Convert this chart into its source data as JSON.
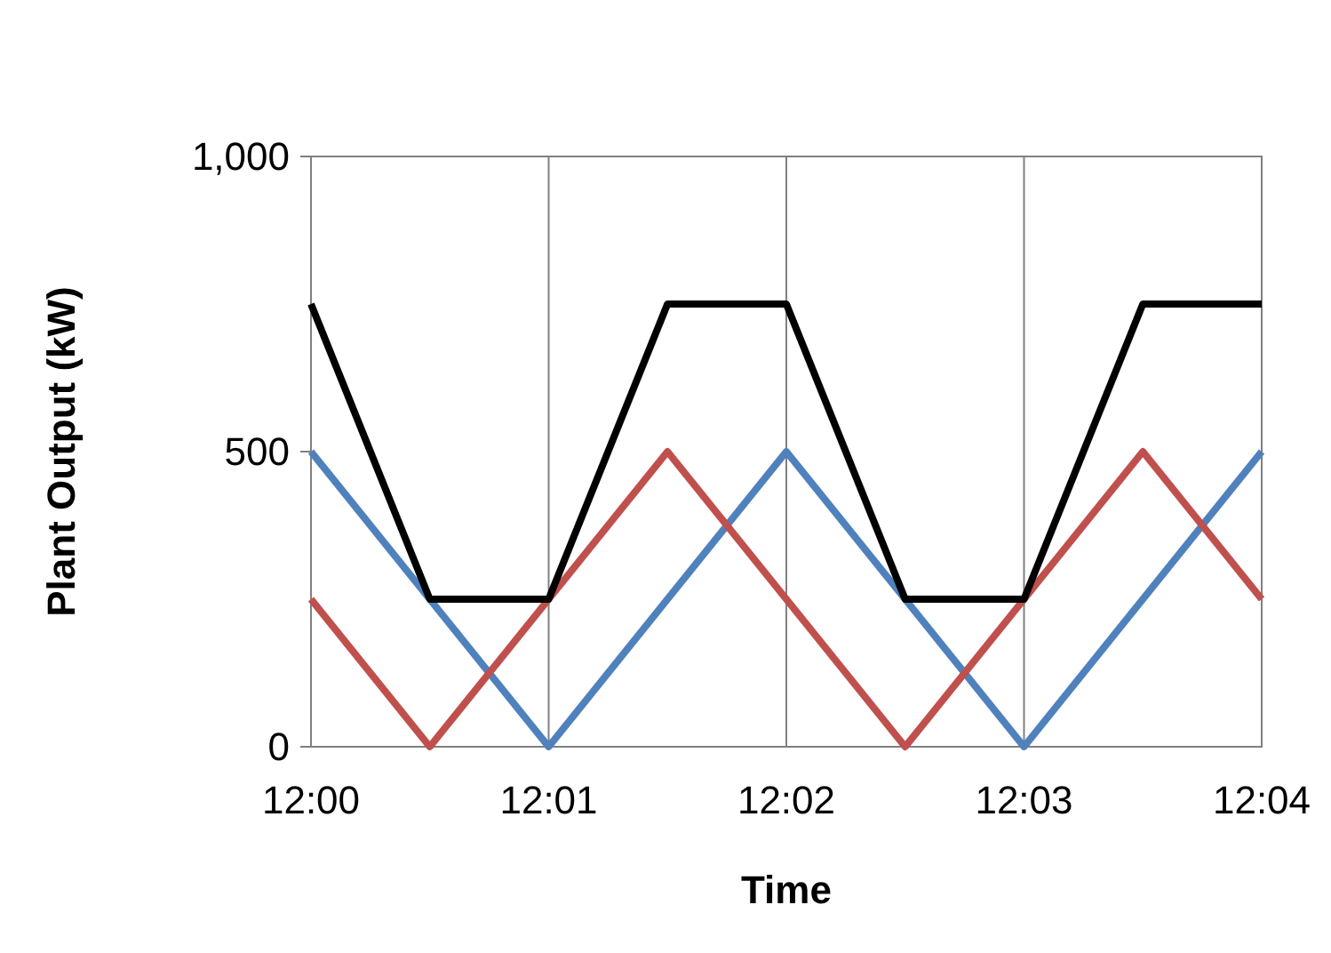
{
  "chart_data": {
    "type": "line",
    "xlabel": "Time",
    "ylabel": "Plant Output (kW)",
    "xlim": [
      12,
      12.066667
    ],
    "xticks": [
      {
        "value": 12,
        "label": "12:00"
      },
      {
        "value": 12.016667,
        "label": "12:01"
      },
      {
        "value": 12.033333,
        "label": "12:02"
      },
      {
        "value": 12.05,
        "label": "12:03"
      },
      {
        "value": 12.066667,
        "label": "12:04"
      }
    ],
    "ylim": [
      0,
      1000
    ],
    "yticks": [
      0,
      500,
      {
        "value": 1000,
        "label": "1,000"
      }
    ],
    "grid": "x",
    "marker": "none",
    "line_style": "solid",
    "series": [
      {
        "color": "#4f81bd",
        "x": [
          12,
          12.016667,
          12.033333,
          12.05,
          12.066667
        ],
        "values": [
          500,
          0,
          500,
          0,
          500
        ]
      },
      {
        "color": "#c0504d",
        "x": [
          12,
          12.008333,
          12.025,
          12.041667,
          12.058333,
          12.066667
        ],
        "values": [
          250,
          0,
          500,
          0,
          500,
          250
        ]
      },
      {
        "color": "#000000",
        "x": [
          12,
          12.008333,
          12.016667,
          12.025,
          12.033333,
          12.041667,
          12.05,
          12.058333,
          12.066667
        ],
        "values": [
          750,
          250,
          250,
          750,
          750,
          250,
          250,
          750,
          750
        ]
      }
    ]
  }
}
